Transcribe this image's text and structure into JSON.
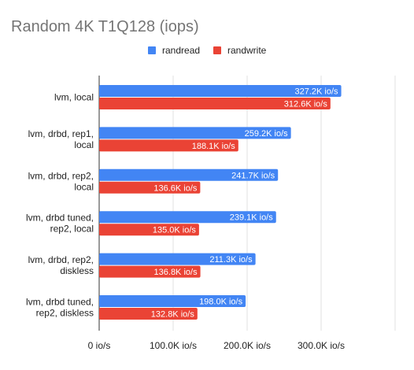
{
  "chart_data": {
    "type": "bar",
    "orientation": "horizontal",
    "title": "Random 4K T1Q128 (iops)",
    "categories": [
      [
        "lvm, local"
      ],
      [
        "lvm, drbd, rep1,",
        "local"
      ],
      [
        "lvm, drbd, rep2,",
        "local"
      ],
      [
        "lvm, drbd tuned,",
        "rep2, local"
      ],
      [
        "lvm, drbd, rep2,",
        "diskless"
      ],
      [
        "lvm, drbd tuned,",
        "rep2, diskless"
      ]
    ],
    "series": [
      {
        "name": "randread",
        "color": "#4285f4",
        "values": [
          327200,
          259200,
          241700,
          239100,
          211300,
          198000
        ],
        "labels": [
          "327.2K io/s",
          "259.2K io/s",
          "241.7K io/s",
          "239.1K io/s",
          "211.3K io/s",
          "198.0K io/s"
        ]
      },
      {
        "name": "randwrite",
        "color": "#ea4335",
        "values": [
          312600,
          188100,
          136600,
          135000,
          136800,
          132800
        ],
        "labels": [
          "312.6K io/s",
          "188.1K io/s",
          "136.6K io/s",
          "135.0K io/s",
          "136.8K io/s",
          "132.8K io/s"
        ]
      }
    ],
    "x_ticks": [
      {
        "value": 0,
        "label": "0 io/s"
      },
      {
        "value": 100000,
        "label": "100.0K io/s"
      },
      {
        "value": 200000,
        "label": "200.0K io/s"
      },
      {
        "value": 300000,
        "label": "300.0K io/s"
      },
      {
        "value": 400000,
        "label": ""
      }
    ],
    "xlim": [
      0,
      400000
    ],
    "grid": true,
    "legend_position": "top"
  }
}
